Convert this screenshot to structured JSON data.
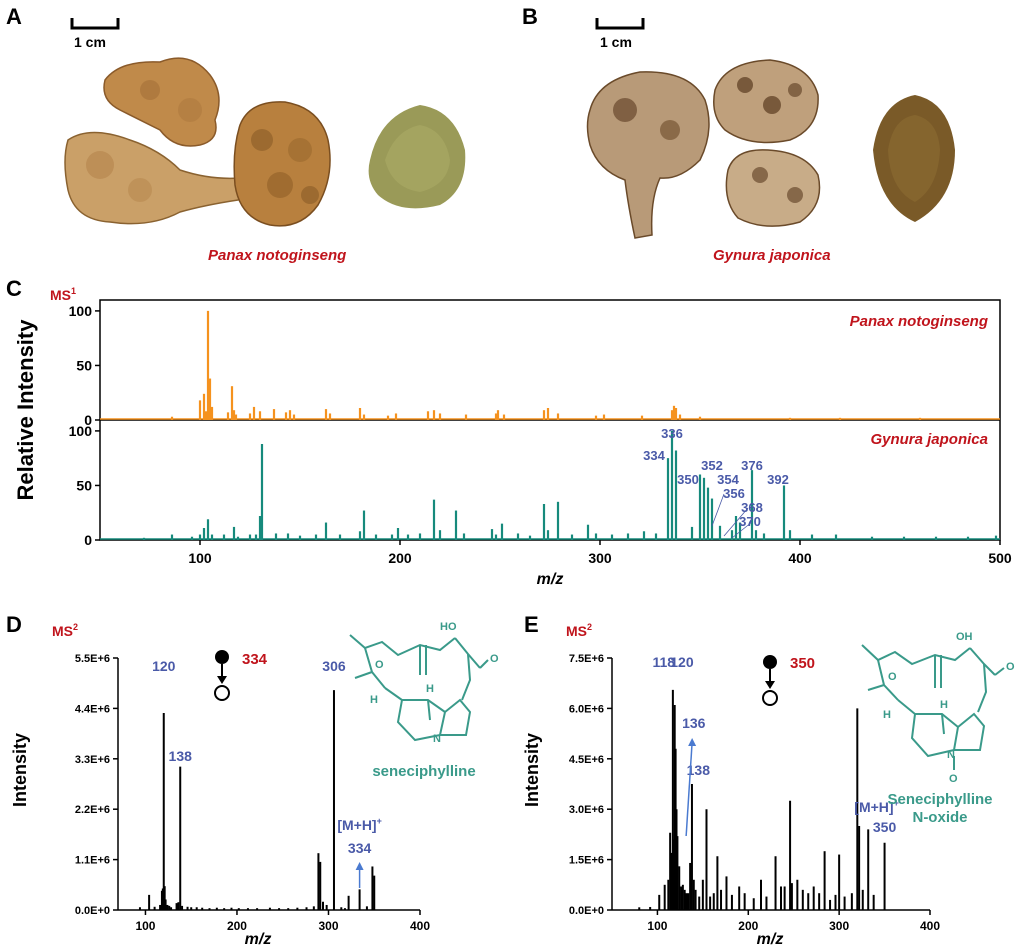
{
  "panels": {
    "a": {
      "letter": "A",
      "scale_label": "1 cm",
      "species": "Panax notoginseng"
    },
    "b": {
      "letter": "B",
      "scale_label": "1 cm",
      "species": "Gynura japonica"
    },
    "c": {
      "letter": "C",
      "ms_label": "MS",
      "ms_sup": "1"
    },
    "d": {
      "letter": "D",
      "ms_label": "MS",
      "ms_sup": "2",
      "precursor": "334",
      "compound": "seneciphylline"
    },
    "e": {
      "letter": "E",
      "ms_label": "MS",
      "ms_sup": "2",
      "precursor": "350",
      "compound_line1": "Seneciphylline",
      "compound_line2": "N-oxide"
    }
  },
  "colors": {
    "panax": "#f5921e",
    "gynura": "#168a7c",
    "species_text": "#c0141c",
    "peak_label": "#4a5aa8",
    "chem": "#3a9a8a",
    "ms2_bar": "#000000"
  },
  "chart_data": [
    {
      "id": "C",
      "type": "bar",
      "xlabel": "m/z",
      "ylabel": "Relative Intensity",
      "xlim": [
        50,
        500
      ],
      "ylim": [
        0,
        110
      ],
      "xticks": [
        100,
        200,
        300,
        400,
        500
      ],
      "yticks": [
        0,
        50,
        100
      ],
      "series": [
        {
          "name": "Panax notoginseng",
          "x": [
            86,
            100,
            102,
            103,
            104,
            105,
            106,
            114,
            116,
            117,
            118,
            125,
            127,
            130,
            137,
            143,
            145,
            147,
            163,
            165,
            180,
            182,
            194,
            198,
            214,
            217,
            220,
            233,
            248,
            249,
            252,
            272,
            274,
            279,
            298,
            302,
            321,
            336,
            337,
            338,
            340,
            350,
            395,
            420,
            460
          ],
          "y": [
            3,
            18,
            24,
            8,
            100,
            38,
            12,
            7,
            31,
            9,
            5,
            6,
            12,
            8,
            10,
            7,
            9,
            5,
            10,
            6,
            11,
            5,
            4,
            6,
            8,
            9,
            6,
            5,
            6,
            9,
            5,
            9,
            11,
            6,
            4,
            5,
            4,
            9,
            13,
            11,
            5,
            3,
            2,
            2,
            2
          ]
        },
        {
          "name": "Gynura japonica",
          "x": [
            72,
            86,
            96,
            100,
            102,
            104,
            106,
            112,
            117,
            119,
            125,
            128,
            130,
            131,
            138,
            144,
            150,
            158,
            163,
            170,
            180,
            182,
            188,
            196,
            199,
            204,
            210,
            217,
            220,
            228,
            232,
            246,
            248,
            251,
            259,
            265,
            272,
            274,
            279,
            286,
            294,
            298,
            306,
            314,
            322,
            328,
            334,
            336,
            338,
            346,
            350,
            352,
            354,
            356,
            360,
            366,
            368,
            370,
            376,
            378,
            382,
            392,
            395,
            406,
            418,
            436,
            452,
            468,
            484,
            498
          ],
          "y": [
            2,
            5,
            3,
            5,
            11,
            19,
            5,
            5,
            12,
            3,
            5,
            5,
            22,
            88,
            6,
            6,
            4,
            5,
            16,
            5,
            8,
            27,
            5,
            5,
            11,
            5,
            6,
            37,
            9,
            27,
            6,
            10,
            5,
            15,
            6,
            4,
            33,
            9,
            35,
            5,
            14,
            6,
            5,
            6,
            8,
            6,
            75,
            100,
            82,
            12,
            60,
            57,
            48,
            38,
            13,
            9,
            22,
            16,
            64,
            9,
            6,
            50,
            9,
            5,
            5,
            3,
            3,
            3,
            3,
            4
          ]
        }
      ],
      "annotations": [
        {
          "x": 334,
          "label": "334"
        },
        {
          "x": 336,
          "label": "336"
        },
        {
          "x": 350,
          "label": "350"
        },
        {
          "x": 352,
          "label": "352"
        },
        {
          "x": 354,
          "label": "354"
        },
        {
          "x": 356,
          "label": "356"
        },
        {
          "x": 368,
          "label": "368"
        },
        {
          "x": 370,
          "label": "370"
        },
        {
          "x": 376,
          "label": "376"
        },
        {
          "x": 392,
          "label": "392"
        }
      ]
    },
    {
      "id": "D",
      "type": "bar",
      "xlabel": "m/z",
      "ylabel": "Intensity",
      "xlim": [
        70,
        400
      ],
      "ylim": [
        0,
        5500000
      ],
      "xticks": [
        100,
        200,
        300,
        400
      ],
      "yticks": [
        "0.0E+0",
        "1.1E+6",
        "2.2E+6",
        "3.3E+6",
        "4.4E+6",
        "5.5E+6"
      ],
      "ytick_values": [
        0,
        1100000,
        2200000,
        3300000,
        4400000,
        5500000
      ],
      "x": [
        94,
        104,
        110,
        116,
        118,
        119,
        120,
        121,
        122,
        124,
        126,
        128,
        134,
        136,
        138,
        140,
        146,
        150,
        156,
        162,
        170,
        178,
        186,
        194,
        202,
        212,
        222,
        236,
        246,
        256,
        266,
        276,
        284,
        289,
        291,
        294,
        298,
        306,
        314,
        318,
        322,
        334,
        342,
        348,
        350
      ],
      "y": [
        60000,
        330000,
        70000,
        110000,
        420000,
        470000,
        4300000,
        520000,
        230000,
        110000,
        90000,
        60000,
        150000,
        170000,
        3130000,
        90000,
        70000,
        60000,
        60000,
        50000,
        40000,
        50000,
        40000,
        50000,
        40000,
        40000,
        40000,
        50000,
        40000,
        40000,
        50000,
        60000,
        80000,
        1240000,
        1050000,
        180000,
        110000,
        4800000,
        60000,
        40000,
        310000,
        450000,
        80000,
        950000,
        750000
      ],
      "annotations": [
        {
          "x": 120,
          "label": "120"
        },
        {
          "x": 138,
          "label": "138"
        },
        {
          "x": 306,
          "label": "306"
        },
        {
          "x": 334,
          "label": "334",
          "label2": "[M+H]",
          "sup": "+"
        }
      ]
    },
    {
      "id": "E",
      "type": "bar",
      "xlabel": "m/z",
      "ylabel": "Intensity",
      "xlim": [
        50,
        400
      ],
      "ylim": [
        0,
        7500000
      ],
      "xticks": [
        100,
        200,
        300,
        400
      ],
      "yticks": [
        "0.0E+0",
        "1.5E+6",
        "3.0E+6",
        "4.5E+6",
        "6.0E+6",
        "7.5E+6"
      ],
      "ytick_values": [
        0,
        1500000,
        3000000,
        4500000,
        6000000,
        7500000
      ],
      "x": [
        80,
        92,
        102,
        108,
        112,
        114,
        116,
        117,
        118,
        119,
        120,
        121,
        122,
        124,
        126,
        128,
        130,
        132,
        134,
        136,
        138,
        140,
        142,
        146,
        150,
        154,
        158,
        162,
        166,
        170,
        176,
        182,
        190,
        196,
        206,
        214,
        220,
        230,
        236,
        240,
        246,
        248,
        254,
        260,
        266,
        272,
        278,
        284,
        290,
        296,
        300,
        306,
        314,
        320,
        322,
        326,
        332,
        338,
        350
      ],
      "y": [
        80000,
        90000,
        450000,
        750000,
        900000,
        2300000,
        1700000,
        6550000,
        2100000,
        6100000,
        4800000,
        3000000,
        2200000,
        1300000,
        700000,
        750000,
        600000,
        500000,
        500000,
        1400000,
        3750000,
        900000,
        600000,
        400000,
        900000,
        3000000,
        400000,
        500000,
        1600000,
        600000,
        1000000,
        450000,
        700000,
        500000,
        350000,
        900000,
        400000,
        1600000,
        700000,
        700000,
        3250000,
        800000,
        900000,
        600000,
        500000,
        700000,
        500000,
        1750000,
        300000,
        450000,
        1650000,
        400000,
        500000,
        6000000,
        2500000,
        600000,
        2400000,
        450000,
        2000000
      ],
      "annotations": [
        {
          "x": 118,
          "label": "118"
        },
        {
          "x": 120,
          "label": "120"
        },
        {
          "x": 136,
          "label": "136"
        },
        {
          "x": 138,
          "label": "138"
        },
        {
          "x": 350,
          "label": "350",
          "label2": "[M+H]",
          "sup": "+"
        }
      ]
    }
  ]
}
